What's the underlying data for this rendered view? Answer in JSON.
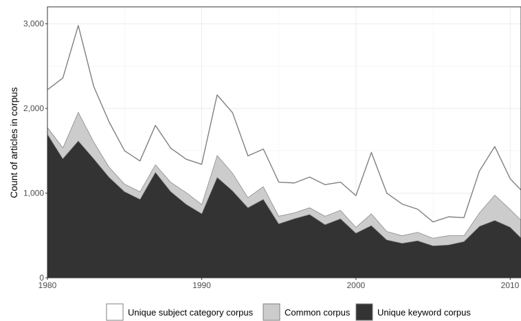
{
  "chart_data": {
    "type": "area",
    "stacked": true,
    "title": "",
    "xlabel": "",
    "ylabel": "Count of articles in corpus",
    "xlim": [
      1980,
      2010.7
    ],
    "ylim": [
      0,
      3200
    ],
    "xticks": [
      1980,
      1990,
      2000,
      2010
    ],
    "xtick_labels": [
      "1980",
      "1990",
      "2000",
      "2010"
    ],
    "yticks": [
      0,
      1000,
      2000,
      3000
    ],
    "ytick_labels": [
      "0",
      "1,000",
      "2,000",
      "3,000"
    ],
    "grid": true,
    "legend_position": "bottom",
    "x": [
      1980,
      1981,
      1982,
      1983,
      1984,
      1985,
      1986,
      1987,
      1988,
      1989,
      1990,
      1991,
      1992,
      1993,
      1994,
      1995,
      1996,
      1997,
      1998,
      1999,
      2000,
      2001,
      2002,
      2003,
      2004,
      2005,
      2006,
      2007,
      2008,
      2009,
      2010,
      2011
    ],
    "series": [
      {
        "name": "Unique keyword corpus",
        "color": "#333333",
        "values": [
          1700,
          1410,
          1620,
          1410,
          1190,
          1020,
          930,
          1250,
          1020,
          870,
          760,
          1190,
          1030,
          830,
          930,
          640,
          700,
          750,
          630,
          700,
          530,
          620,
          450,
          410,
          440,
          380,
          390,
          430,
          610,
          680,
          600,
          420
        ]
      },
      {
        "name": "Common corpus",
        "color": "#cccccc",
        "values": [
          80,
          130,
          340,
          200,
          120,
          90,
          90,
          90,
          110,
          140,
          110,
          260,
          210,
          120,
          150,
          90,
          70,
          80,
          100,
          100,
          70,
          140,
          100,
          90,
          100,
          90,
          110,
          70,
          160,
          300,
          210,
          210
        ]
      },
      {
        "name": "Unique subject category corpus",
        "color": "#ffffff",
        "values": [
          440,
          820,
          1020,
          650,
          530,
          390,
          360,
          460,
          400,
          390,
          470,
          710,
          710,
          490,
          440,
          400,
          350,
          360,
          370,
          330,
          370,
          720,
          450,
          370,
          270,
          190,
          220,
          210,
          490,
          570,
          360,
          350
        ]
      }
    ],
    "legend_order": [
      "Unique subject category corpus",
      "Common corpus",
      "Unique keyword corpus"
    ]
  }
}
